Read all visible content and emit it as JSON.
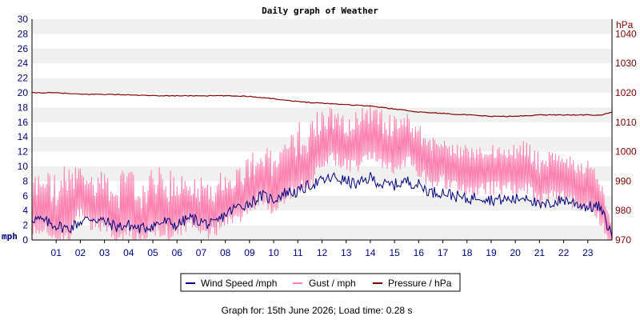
{
  "chart_data": {
    "type": "line",
    "title": "Daily graph of Weather",
    "footer": "Graph for: 15th June 2026; Load time: 0.28 s",
    "x_ticks": [
      "01",
      "02",
      "03",
      "04",
      "05",
      "06",
      "07",
      "08",
      "09",
      "10",
      "11",
      "12",
      "13",
      "14",
      "15",
      "16",
      "17",
      "18",
      "19",
      "20",
      "21",
      "22",
      "23"
    ],
    "x_range_hours": [
      0,
      24
    ],
    "left_axis": {
      "unit": "mph",
      "range": [
        0,
        30
      ],
      "ticks": [
        0,
        2,
        4,
        6,
        8,
        10,
        12,
        14,
        16,
        18,
        20,
        22,
        24,
        26,
        28,
        30
      ]
    },
    "right_axis": {
      "unit": "hPa",
      "range": [
        970,
        1045
      ],
      "ticks": [
        970,
        980,
        990,
        1000,
        1010,
        1020,
        1030,
        1040
      ]
    },
    "grid": "horizontal banded",
    "legend_position": "bottom-center",
    "series": [
      {
        "name": "Wind Speed /mph",
        "color": "#000080",
        "axis": "left",
        "x": [
          0,
          0.5,
          1,
          1.5,
          2,
          2.5,
          3,
          3.5,
          4,
          4.5,
          5,
          5.5,
          6,
          6.5,
          7,
          7.5,
          8,
          8.5,
          9,
          9.5,
          10,
          10.5,
          11,
          11.5,
          12,
          12.5,
          13,
          13.5,
          14,
          14.5,
          15,
          15.5,
          16,
          16.5,
          17,
          17.5,
          18,
          18.5,
          19,
          19.5,
          20,
          20.5,
          21,
          21.5,
          22,
          22.5,
          23,
          23.5,
          24
        ],
        "values": [
          3,
          2.5,
          2,
          1.5,
          2.5,
          3,
          2.5,
          1.8,
          2,
          1.5,
          2,
          2.5,
          2,
          3,
          2.5,
          2,
          3.5,
          4.5,
          5,
          6,
          5.5,
          6.5,
          6.5,
          7.5,
          8,
          8.5,
          8,
          7.5,
          8.5,
          7.5,
          7.5,
          8,
          7.5,
          6.5,
          6.5,
          6,
          5.5,
          6,
          5.5,
          5.5,
          5.5,
          6,
          4.5,
          5,
          5.5,
          5,
          4.5,
          4.5,
          0.5
        ]
      },
      {
        "name": "Gust / mph",
        "color": "#ff80b0",
        "axis": "left",
        "x": [
          0,
          0.5,
          1,
          1.5,
          2,
          2.5,
          3,
          3.5,
          4,
          4.5,
          5,
          5.5,
          6,
          6.5,
          7,
          7.5,
          8,
          8.5,
          9,
          9.5,
          10,
          10.5,
          11,
          11.5,
          12,
          12.5,
          13,
          13.5,
          14,
          14.5,
          15,
          15.5,
          16,
          16.5,
          17,
          17.5,
          18,
          18.5,
          19,
          19.5,
          20,
          20.5,
          21,
          21.5,
          22,
          22.5,
          23,
          23.5,
          24
        ],
        "values": [
          5,
          6,
          4,
          4,
          8,
          6,
          6,
          4,
          5,
          4,
          5,
          5,
          5,
          6,
          5,
          5,
          7,
          7,
          8,
          10,
          8,
          10,
          11,
          12,
          14,
          15,
          14,
          14,
          16,
          14,
          14,
          15,
          13,
          12,
          12,
          11,
          11,
          11,
          11,
          11,
          11,
          11,
          9,
          10,
          10,
          9,
          9,
          7,
          1
        ],
        "peaks": [
          9,
          10,
          9,
          11,
          10,
          9,
          10,
          9,
          10,
          9,
          10,
          10,
          9,
          9,
          9,
          10,
          9,
          10,
          12,
          13,
          12,
          14,
          16,
          17,
          19,
          18,
          17,
          18,
          19,
          18,
          17,
          18,
          16,
          14,
          14,
          13,
          13,
          13,
          13,
          13,
          13,
          14,
          12,
          12,
          12,
          11,
          11,
          9,
          2
        ]
      },
      {
        "name": "Pressure / hPa",
        "color": "#800000",
        "axis": "right",
        "x": [
          0,
          1,
          2,
          3,
          4,
          5,
          6,
          7,
          8,
          9,
          10,
          11,
          12,
          13,
          14,
          15,
          16,
          17,
          18,
          19,
          20,
          21,
          22,
          23,
          23.5,
          24
        ],
        "values": [
          1020,
          1020,
          1019.5,
          1019.5,
          1019.3,
          1019,
          1019,
          1019,
          1019,
          1018.8,
          1018,
          1017,
          1016.5,
          1016,
          1015.5,
          1014.5,
          1013.5,
          1013,
          1012.5,
          1012,
          1012,
          1012.5,
          1012.5,
          1012.5,
          1012.3,
          1013.5
        ]
      }
    ]
  }
}
